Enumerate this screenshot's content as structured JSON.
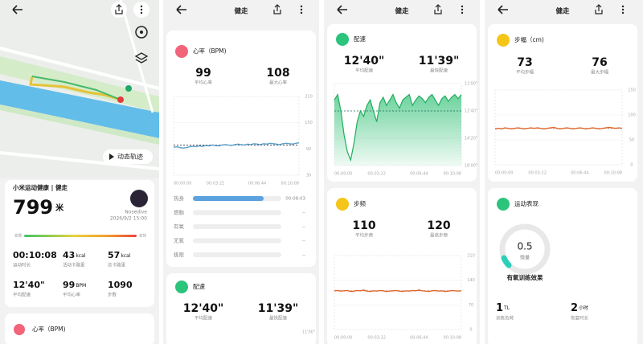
{
  "screens": [
    {
      "map_button": "动态轨迹",
      "summary": {
        "app_title": "小米运动健康 | 健走",
        "distance": "799",
        "distance_unit": "米",
        "user": "Nosedive",
        "datetime": "2026/9/2 15:00",
        "scale_slow": "变慢",
        "scale_fast": "变快",
        "stats": [
          {
            "value": "00:10:08",
            "label": "运动时长"
          },
          {
            "value": "43",
            "unit": "kcal",
            "label": "活动卡路里"
          },
          {
            "value": "57",
            "unit": "kcal",
            "label": "总卡路里"
          },
          {
            "value": "12'40\"",
            "label": "平均配速"
          },
          {
            "value": "99",
            "unit": "BPM",
            "label": "平均心率"
          },
          {
            "value": "1090",
            "label": "步数"
          }
        ]
      },
      "peek_card_title": "心率（BPM)"
    },
    {
      "header": "健走",
      "heart_rate": {
        "title": "心率（BPM)",
        "stats": [
          {
            "value": "99",
            "label": "平均心率"
          },
          {
            "value": "108",
            "label": "最大心率"
          }
        ],
        "chart": {
          "values": [
            94,
            95,
            93,
            92,
            93,
            95,
            96,
            95,
            97,
            96,
            98,
            97,
            99,
            98,
            97,
            99,
            100,
            99,
            98,
            100,
            101,
            100,
            99,
            101,
            100,
            102,
            101,
            100,
            102,
            101,
            103,
            102,
            101,
            100,
            102,
            103,
            102,
            101,
            103,
            104
          ],
          "ylim": [
            30,
            210
          ],
          "yticks": [
            30,
            90,
            150,
            210
          ],
          "reference": 99,
          "xticks": [
            "00:00:00",
            "00:03:22",
            "00:06:44",
            "00:10:08"
          ]
        },
        "zones": [
          {
            "name": "热身",
            "time": "00:08:03",
            "share": 80
          },
          {
            "name": "燃脂",
            "time": "--",
            "share": 0
          },
          {
            "name": "有氧",
            "time": "--",
            "share": 0
          },
          {
            "name": "无氧",
            "time": "--",
            "share": 0
          },
          {
            "name": "极限",
            "time": "--",
            "share": 0
          }
        ]
      },
      "pace_peek": {
        "title": "配速",
        "stats": [
          {
            "value": "12'40\"",
            "label": "平均配速"
          },
          {
            "value": "11'39\"",
            "label": "最快配速"
          }
        ],
        "first_tick": "11'00\""
      }
    },
    {
      "header": "健走",
      "pace": {
        "title": "配速",
        "stats": [
          {
            "value": "12'40\"",
            "label": "平均配速"
          },
          {
            "value": "11'39\"",
            "label": "最快配速"
          }
        ],
        "chart": {
          "values": [
            720,
            700,
            760,
            850,
            910,
            940,
            880,
            800,
            760,
            780,
            740,
            720,
            760,
            800,
            730,
            710,
            740,
            720,
            700,
            730,
            750,
            720,
            710,
            700,
            740,
            720,
            705,
            715,
            730,
            710,
            700,
            720,
            740,
            715,
            705,
            725,
            710,
            700,
            715,
            700
          ],
          "ylim": [
            960,
            660
          ],
          "yticks": [
            {
              "value": 660,
              "label": "11'00\""
            },
            {
              "value": 760,
              "label": "12'40\""
            },
            {
              "value": 860,
              "label": "14'20\""
            },
            {
              "value": 960,
              "label": "16'00\""
            }
          ],
          "reference": 760,
          "xticks": [
            "00:00:00",
            "00:03:22",
            "00:06:44",
            "00:10:08"
          ]
        }
      },
      "cadence": {
        "title": "步频",
        "stats": [
          {
            "value": "110",
            "label": "平均步频"
          },
          {
            "value": "120",
            "label": "最高步频"
          }
        ],
        "chart": {
          "values": [
            110,
            111,
            109,
            110,
            111,
            108,
            109,
            111,
            110,
            112,
            109,
            108,
            110,
            109,
            111,
            110,
            108,
            109,
            110,
            111,
            109,
            108,
            110,
            109,
            111,
            110,
            112,
            110,
            109,
            108,
            110,
            111,
            109,
            110,
            108,
            109,
            111,
            110,
            109,
            110
          ],
          "ylim": [
            0,
            210
          ],
          "yticks": [
            0,
            70,
            140,
            210
          ],
          "reference": 110,
          "xticks": [
            "00:00:00",
            "00:03:22",
            "00:06:44",
            "00:10:08"
          ]
        }
      }
    },
    {
      "header": "健走",
      "stride": {
        "title": "步幅（cm)",
        "stats": [
          {
            "value": "73",
            "label": "平均步幅"
          },
          {
            "value": "76",
            "label": "最大步幅"
          }
        ],
        "chart": {
          "values": [
            72,
            73,
            72,
            74,
            73,
            72,
            73,
            74,
            73,
            72,
            73,
            74,
            73,
            74,
            73,
            72,
            73,
            74,
            75,
            73,
            72,
            73,
            74,
            73,
            72,
            73,
            74,
            73,
            72,
            73,
            74,
            73,
            72,
            73,
            74,
            75,
            74,
            73,
            74,
            73
          ],
          "ylim": [
            0,
            150
          ],
          "yticks": [
            0,
            50,
            100,
            150
          ],
          "reference": 73,
          "xticks": [
            "00:00:00",
            "00:03:22",
            "00:06:44",
            "00:10:08"
          ]
        }
      },
      "performance": {
        "title": "运动表现",
        "value": "0.5",
        "level": "微量",
        "effect": "有氧训练效果",
        "stats": [
          {
            "value": "1",
            "unit": "TL",
            "label": "训练负荷"
          },
          {
            "value": "2",
            "unit": "小时",
            "label": "恢复时长"
          }
        ]
      }
    }
  ]
}
